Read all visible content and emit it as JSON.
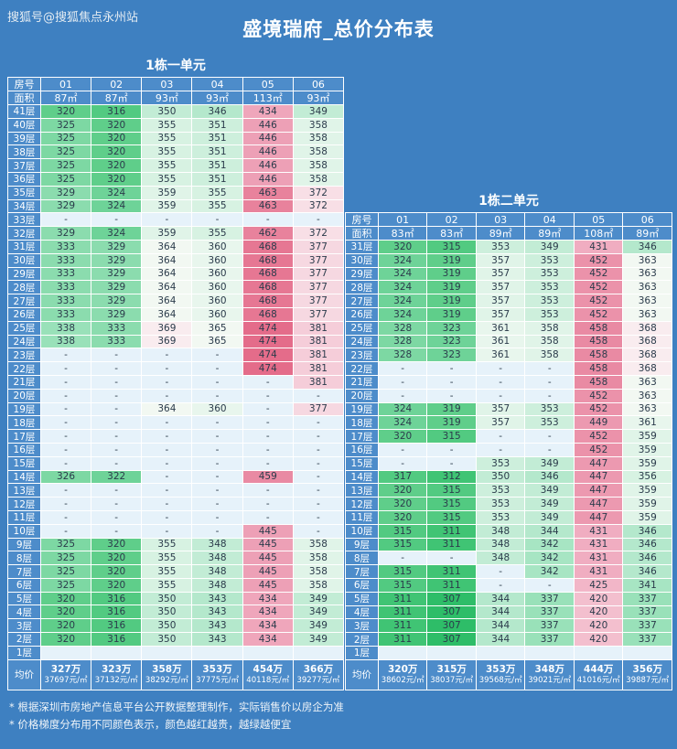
{
  "watermark": "搜狐号@搜狐焦点永州站",
  "title": "盛境瑞府_总价分布表",
  "labels": {
    "room": "房号",
    "area": "面积",
    "avg": "均价"
  },
  "notes": [
    "* 根据深圳市房地产信息平台公开数据整理制作，实际销售价以房企为准",
    "* 价格梯度分布用不同颜色表示，颜色越红越贵，越绿越便宜"
  ],
  "colors": {
    "page_bg": "#3e80c1",
    "header_bg": "#4d8cca",
    "empty_cell": "#e6f2fa",
    "cell_text": "#2b3b4b",
    "grid_line": "#ffffff",
    "scale": [
      [
        308,
        "#2ebd68"
      ],
      [
        312,
        "#40c474"
      ],
      [
        317,
        "#52ca81"
      ],
      [
        320,
        "#5fce8a"
      ],
      [
        324,
        "#6ed398"
      ],
      [
        328,
        "#7dd8a3"
      ],
      [
        333,
        "#8bdcae"
      ],
      [
        338,
        "#99e1b9"
      ],
      [
        342,
        "#a7e5c3"
      ],
      [
        346,
        "#b4e8cc"
      ],
      [
        350,
        "#c2ecd5"
      ],
      [
        353,
        "#cdefdc"
      ],
      [
        356,
        "#d7f2e2"
      ],
      [
        359,
        "#e0f4e8"
      ],
      [
        362,
        "#e8f6ed"
      ],
      [
        366,
        "#f2f8f2"
      ],
      [
        369,
        "#f9ecef"
      ],
      [
        373,
        "#f8dfe6"
      ],
      [
        378,
        "#f6d8e1"
      ],
      [
        382,
        "#f5cdd9"
      ],
      [
        420,
        "#f3bfce"
      ],
      [
        426,
        "#f2b6c8"
      ],
      [
        432,
        "#f0adc1"
      ],
      [
        436,
        "#efa6bb"
      ],
      [
        446,
        "#eda0b6"
      ],
      [
        450,
        "#ec99b0"
      ],
      [
        454,
        "#eb92aa"
      ],
      [
        459,
        "#e98aa3"
      ],
      [
        463,
        "#e8829c"
      ],
      [
        469,
        "#e67793"
      ],
      [
        475,
        "#e46c8a"
      ]
    ]
  },
  "chart_data": [
    {
      "type": "heatmap-table",
      "title": "1栋一单元",
      "columns": [
        "01",
        "02",
        "03",
        "04",
        "05",
        "06"
      ],
      "areas": [
        "87㎡",
        "87㎡",
        "93㎡",
        "93㎡",
        "113㎡",
        "93㎡"
      ],
      "rows": [
        {
          "floor": "41层",
          "values": [
            "320",
            "316",
            "350",
            "346",
            "434",
            "349"
          ]
        },
        {
          "floor": "40层",
          "values": [
            "325",
            "320",
            "355",
            "351",
            "446",
            "358"
          ]
        },
        {
          "floor": "39层",
          "values": [
            "325",
            "320",
            "355",
            "351",
            "446",
            "358"
          ]
        },
        {
          "floor": "38层",
          "values": [
            "325",
            "320",
            "355",
            "351",
            "446",
            "358"
          ]
        },
        {
          "floor": "37层",
          "values": [
            "325",
            "320",
            "355",
            "351",
            "446",
            "358"
          ]
        },
        {
          "floor": "36层",
          "values": [
            "325",
            "320",
            "355",
            "351",
            "446",
            "358"
          ]
        },
        {
          "floor": "35层",
          "values": [
            "329",
            "324",
            "359",
            "355",
            "463",
            "372"
          ]
        },
        {
          "floor": "34层",
          "values": [
            "329",
            "324",
            "359",
            "355",
            "463",
            "372"
          ]
        },
        {
          "floor": "33层",
          "values": [
            "-",
            "-",
            "-",
            "-",
            "-",
            "-"
          ]
        },
        {
          "floor": "32层",
          "values": [
            "329",
            "324",
            "359",
            "355",
            "462",
            "372"
          ]
        },
        {
          "floor": "31层",
          "values": [
            "333",
            "329",
            "364",
            "360",
            "468",
            "377"
          ]
        },
        {
          "floor": "30层",
          "values": [
            "333",
            "329",
            "364",
            "360",
            "468",
            "377"
          ]
        },
        {
          "floor": "29层",
          "values": [
            "333",
            "329",
            "364",
            "360",
            "468",
            "377"
          ]
        },
        {
          "floor": "28层",
          "values": [
            "333",
            "329",
            "364",
            "360",
            "468",
            "377"
          ]
        },
        {
          "floor": "27层",
          "values": [
            "333",
            "329",
            "364",
            "360",
            "468",
            "377"
          ]
        },
        {
          "floor": "26层",
          "values": [
            "333",
            "329",
            "364",
            "360",
            "468",
            "377"
          ]
        },
        {
          "floor": "25层",
          "values": [
            "338",
            "333",
            "369",
            "365",
            "474",
            "381"
          ]
        },
        {
          "floor": "24层",
          "values": [
            "338",
            "333",
            "369",
            "365",
            "474",
            "381"
          ]
        },
        {
          "floor": "23层",
          "values": [
            "-",
            "-",
            "-",
            "-",
            "474",
            "381"
          ]
        },
        {
          "floor": "22层",
          "values": [
            "-",
            "-",
            "-",
            "-",
            "474",
            "381"
          ]
        },
        {
          "floor": "21层",
          "values": [
            "-",
            "-",
            "-",
            "-",
            "-",
            "381"
          ]
        },
        {
          "floor": "20层",
          "values": [
            "-",
            "-",
            "-",
            "-",
            "-",
            "-"
          ]
        },
        {
          "floor": "19层",
          "values": [
            "-",
            "-",
            "364",
            "360",
            "-",
            "377"
          ]
        },
        {
          "floor": "18层",
          "values": [
            "-",
            "-",
            "-",
            "-",
            "-",
            "-"
          ]
        },
        {
          "floor": "17层",
          "values": [
            "-",
            "-",
            "-",
            "-",
            "-",
            "-"
          ]
        },
        {
          "floor": "16层",
          "values": [
            "-",
            "-",
            "-",
            "-",
            "-",
            "-"
          ]
        },
        {
          "floor": "15层",
          "values": [
            "-",
            "-",
            "-",
            "-",
            "-",
            "-"
          ]
        },
        {
          "floor": "14层",
          "values": [
            "326",
            "322",
            "-",
            "-",
            "459",
            "-"
          ]
        },
        {
          "floor": "13层",
          "values": [
            "-",
            "-",
            "-",
            "-",
            "-",
            "-"
          ]
        },
        {
          "floor": "12层",
          "values": [
            "-",
            "-",
            "-",
            "-",
            "-",
            "-"
          ]
        },
        {
          "floor": "11层",
          "values": [
            "-",
            "-",
            "-",
            "-",
            "-",
            "-"
          ]
        },
        {
          "floor": "10层",
          "values": [
            "-",
            "-",
            "-",
            "-",
            "445",
            "-"
          ]
        },
        {
          "floor": "9层",
          "values": [
            "325",
            "320",
            "355",
            "348",
            "445",
            "358"
          ]
        },
        {
          "floor": "8层",
          "values": [
            "325",
            "320",
            "355",
            "348",
            "445",
            "358"
          ]
        },
        {
          "floor": "7层",
          "values": [
            "325",
            "320",
            "355",
            "348",
            "445",
            "358"
          ]
        },
        {
          "floor": "6层",
          "values": [
            "325",
            "320",
            "355",
            "348",
            "445",
            "358"
          ]
        },
        {
          "floor": "5层",
          "values": [
            "320",
            "316",
            "350",
            "343",
            "434",
            "349"
          ]
        },
        {
          "floor": "4层",
          "values": [
            "320",
            "316",
            "350",
            "343",
            "434",
            "349"
          ]
        },
        {
          "floor": "3层",
          "values": [
            "320",
            "316",
            "350",
            "343",
            "434",
            "349"
          ]
        },
        {
          "floor": "2层",
          "values": [
            "320",
            "316",
            "350",
            "343",
            "434",
            "349"
          ]
        },
        {
          "floor": "1层",
          "values": [
            "",
            "",
            "",
            "",
            "",
            ""
          ]
        }
      ],
      "avg": [
        [
          "327万",
          "37697元/㎡"
        ],
        [
          "323万",
          "37132元/㎡"
        ],
        [
          "358万",
          "38292元/㎡"
        ],
        [
          "353万",
          "37775元/㎡"
        ],
        [
          "454万",
          "40118元/㎡"
        ],
        [
          "366万",
          "39277元/㎡"
        ]
      ]
    },
    {
      "type": "heatmap-table",
      "title": "1栋二单元",
      "columns": [
        "01",
        "02",
        "03",
        "04",
        "05",
        "06"
      ],
      "areas": [
        "83㎡",
        "83㎡",
        "89㎡",
        "89㎡",
        "108㎡",
        "89㎡"
      ],
      "rows": [
        {
          "floor": "31层",
          "values": [
            "320",
            "315",
            "353",
            "349",
            "431",
            "346"
          ]
        },
        {
          "floor": "30层",
          "values": [
            "324",
            "319",
            "357",
            "353",
            "452",
            "363"
          ]
        },
        {
          "floor": "29层",
          "values": [
            "324",
            "319",
            "357",
            "353",
            "452",
            "363"
          ]
        },
        {
          "floor": "28层",
          "values": [
            "324",
            "319",
            "357",
            "353",
            "452",
            "363"
          ]
        },
        {
          "floor": "27层",
          "values": [
            "324",
            "319",
            "357",
            "353",
            "452",
            "363"
          ]
        },
        {
          "floor": "26层",
          "values": [
            "324",
            "319",
            "357",
            "353",
            "452",
            "363"
          ]
        },
        {
          "floor": "25层",
          "values": [
            "328",
            "323",
            "361",
            "358",
            "458",
            "368"
          ]
        },
        {
          "floor": "24层",
          "values": [
            "328",
            "323",
            "361",
            "358",
            "458",
            "368"
          ]
        },
        {
          "floor": "23层",
          "values": [
            "328",
            "323",
            "361",
            "358",
            "458",
            "368"
          ]
        },
        {
          "floor": "22层",
          "values": [
            "-",
            "-",
            "-",
            "-",
            "458",
            "368"
          ]
        },
        {
          "floor": "21层",
          "values": [
            "-",
            "-",
            "-",
            "-",
            "458",
            "363"
          ]
        },
        {
          "floor": "20层",
          "values": [
            "-",
            "-",
            "-",
            "-",
            "452",
            "363"
          ]
        },
        {
          "floor": "19层",
          "values": [
            "324",
            "319",
            "357",
            "353",
            "452",
            "363"
          ]
        },
        {
          "floor": "18层",
          "values": [
            "324",
            "319",
            "357",
            "353",
            "449",
            "361"
          ]
        },
        {
          "floor": "17层",
          "values": [
            "320",
            "315",
            "-",
            "-",
            "452",
            "359"
          ]
        },
        {
          "floor": "16层",
          "values": [
            "-",
            "-",
            "-",
            "-",
            "452",
            "359"
          ]
        },
        {
          "floor": "15层",
          "values": [
            "-",
            "-",
            "353",
            "349",
            "447",
            "359"
          ]
        },
        {
          "floor": "14层",
          "values": [
            "317",
            "312",
            "350",
            "346",
            "447",
            "356"
          ]
        },
        {
          "floor": "13层",
          "values": [
            "320",
            "315",
            "353",
            "349",
            "447",
            "359"
          ]
        },
        {
          "floor": "12层",
          "values": [
            "320",
            "315",
            "353",
            "349",
            "447",
            "359"
          ]
        },
        {
          "floor": "11层",
          "values": [
            "320",
            "315",
            "353",
            "349",
            "447",
            "359"
          ]
        },
        {
          "floor": "10层",
          "values": [
            "315",
            "311",
            "348",
            "344",
            "431",
            "346"
          ]
        },
        {
          "floor": "9层",
          "values": [
            "315",
            "311",
            "348",
            "342",
            "431",
            "346"
          ]
        },
        {
          "floor": "8层",
          "values": [
            "-",
            "-",
            "348",
            "342",
            "431",
            "346"
          ]
        },
        {
          "floor": "7层",
          "values": [
            "315",
            "311",
            "-",
            "342",
            "431",
            "346"
          ]
        },
        {
          "floor": "6层",
          "values": [
            "315",
            "311",
            "-",
            "-",
            "425",
            "341"
          ]
        },
        {
          "floor": "5层",
          "values": [
            "311",
            "307",
            "344",
            "337",
            "420",
            "337"
          ]
        },
        {
          "floor": "4层",
          "values": [
            "311",
            "307",
            "344",
            "337",
            "420",
            "337"
          ]
        },
        {
          "floor": "3层",
          "values": [
            "311",
            "307",
            "344",
            "337",
            "420",
            "337"
          ]
        },
        {
          "floor": "2层",
          "values": [
            "311",
            "307",
            "344",
            "337",
            "420",
            "337"
          ]
        },
        {
          "floor": "1层",
          "values": [
            "",
            "",
            "",
            "",
            "",
            ""
          ]
        }
      ],
      "avg": [
        [
          "320万",
          "38602元/㎡"
        ],
        [
          "315万",
          "38037元/㎡"
        ],
        [
          "353万",
          "39568元/㎡"
        ],
        [
          "348万",
          "39021元/㎡"
        ],
        [
          "444万",
          "41016元/㎡"
        ],
        [
          "356万",
          "39887元/㎡"
        ]
      ]
    }
  ]
}
